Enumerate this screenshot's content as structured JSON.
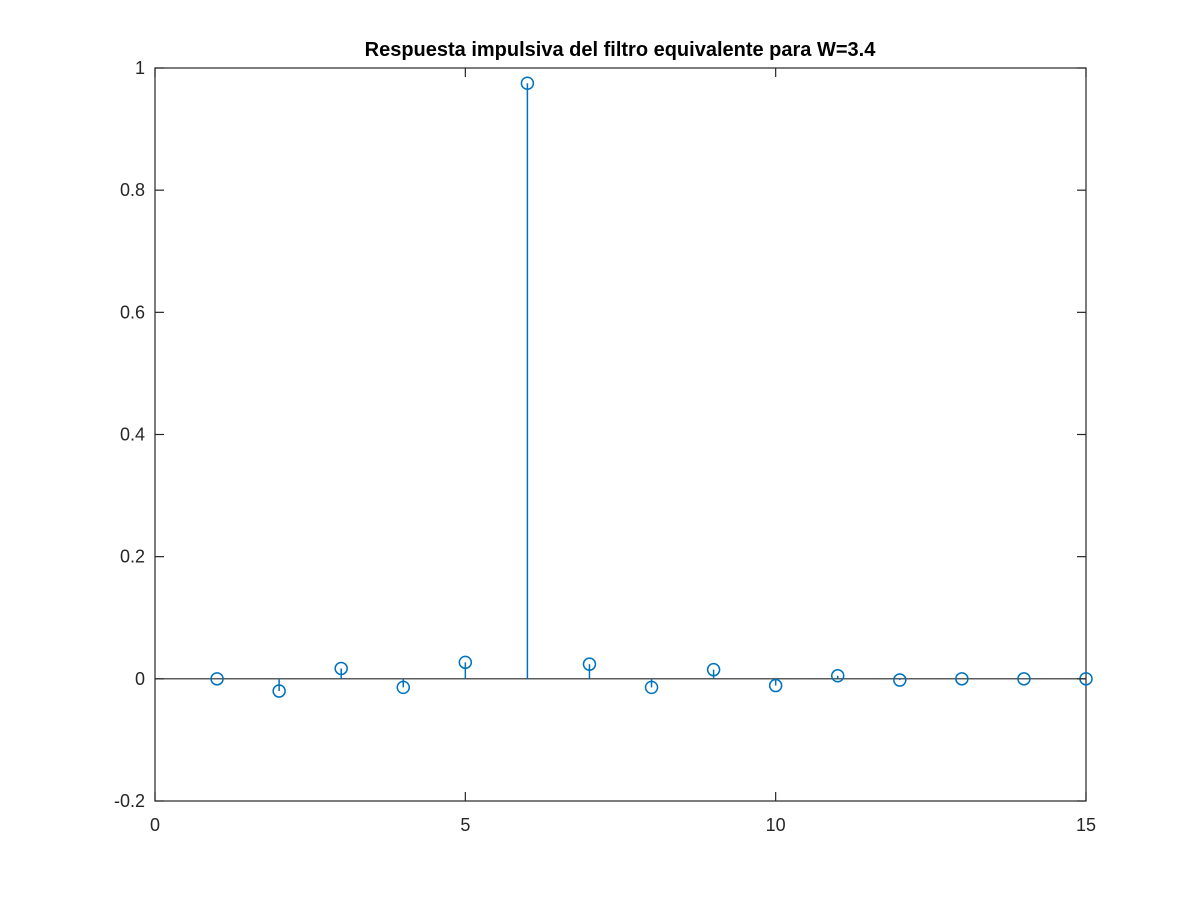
{
  "chart_data": {
    "type": "stem",
    "title": "Respuesta impulsiva del filtro equivalente para W=3.4",
    "xlabel": "",
    "ylabel": "",
    "xlim": [
      0,
      15
    ],
    "ylim": [
      -0.2,
      1
    ],
    "x_ticks": [
      0,
      5,
      10,
      15
    ],
    "y_ticks": [
      -0.2,
      0,
      0.2,
      0.4,
      0.6,
      0.8,
      1
    ],
    "x_tick_labels": [
      "0",
      "5",
      "10",
      "15"
    ],
    "y_tick_labels": [
      "-0.2",
      "0",
      "0.2",
      "0.4",
      "0.6",
      "0.8",
      "1"
    ],
    "grid": false,
    "baseline": 0,
    "series": [
      {
        "x": [
          1,
          2,
          3,
          4,
          5,
          6,
          7,
          8,
          9,
          10,
          11,
          12,
          13,
          14,
          15
        ],
        "values": [
          0.0,
          -0.02,
          0.017,
          -0.014,
          0.027,
          0.975,
          0.024,
          -0.014,
          0.015,
          -0.011,
          0.005,
          -0.002,
          0.0,
          0.0,
          0.0
        ],
        "color": "#0072BD",
        "marker": "circle"
      }
    ]
  },
  "colors": {
    "axes": "#262626",
    "baseline": "#262626",
    "series": "#0072BD",
    "background": "#ffffff"
  }
}
